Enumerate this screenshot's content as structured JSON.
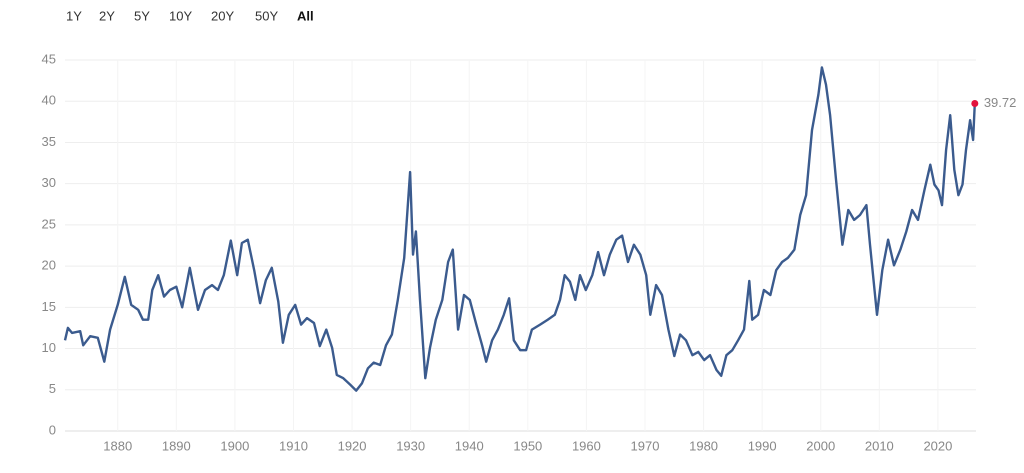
{
  "range_buttons": [
    "1Y",
    "2Y",
    "5Y",
    "10Y",
    "20Y",
    "50Y",
    "All"
  ],
  "chart_data": {
    "type": "line",
    "x": [
      1871.0,
      1871.5,
      1872.2,
      1873.6,
      1874.1,
      1875.3,
      1876.6,
      1877.7,
      1878.7,
      1880.0,
      1881.2,
      1882.3,
      1883.5,
      1884.3,
      1885.2,
      1885.9,
      1886.9,
      1887.9,
      1888.9,
      1890.0,
      1891.0,
      1892.3,
      1893.7,
      1894.9,
      1896.1,
      1897.1,
      1898.1,
      1899.3,
      1900.4,
      1901.2,
      1902.2,
      1903.3,
      1904.3,
      1905.3,
      1906.3,
      1907.4,
      1908.2,
      1909.2,
      1910.3,
      1911.3,
      1912.3,
      1913.5,
      1914.5,
      1915.6,
      1916.6,
      1917.4,
      1918.5,
      1919.7,
      1920.7,
      1921.7,
      1922.7,
      1923.7,
      1924.8,
      1925.8,
      1926.8,
      1927.8,
      1928.9,
      1929.9,
      1930.4,
      1930.9,
      1931.6,
      1932.5,
      1933.3,
      1934.3,
      1935.4,
      1936.4,
      1937.2,
      1938.1,
      1939.1,
      1940.1,
      1941.2,
      1942.2,
      1942.9,
      1943.9,
      1944.9,
      1945.9,
      1946.8,
      1947.6,
      1948.7,
      1949.7,
      1950.7,
      1952.1,
      1953.4,
      1954.6,
      1955.5,
      1956.3,
      1957.2,
      1958.1,
      1958.9,
      1959.9,
      1961.0,
      1962.0,
      1963.0,
      1964.0,
      1965.1,
      1966.1,
      1967.1,
      1968.1,
      1969.2,
      1970.2,
      1970.9,
      1971.9,
      1972.9,
      1974.0,
      1975.0,
      1976.0,
      1977.0,
      1978.1,
      1979.1,
      1980.1,
      1981.1,
      1982.2,
      1983.0,
      1983.9,
      1984.9,
      1985.9,
      1986.9,
      1987.8,
      1988.3,
      1989.3,
      1990.3,
      1991.4,
      1992.4,
      1993.4,
      1994.4,
      1995.5,
      1996.5,
      1997.5,
      1998.5,
      1999.6,
      2000.2,
      2000.9,
      2001.6,
      2002.6,
      2003.7,
      2004.7,
      2005.7,
      2006.7,
      2007.8,
      2008.4,
      2009.6,
      2010.5,
      2011.5,
      2012.5,
      2013.6,
      2014.6,
      2015.6,
      2016.6,
      2017.7,
      2018.7,
      2019.4,
      2020.1,
      2020.7,
      2021.4,
      2022.1,
      2022.8,
      2023.5,
      2024.2,
      2024.8,
      2025.5,
      2026.0,
      2026.3
    ],
    "series": [
      {
        "color": "#3b5b8e",
        "values": [
          11.0,
          12.5,
          11.9,
          12.1,
          10.4,
          11.5,
          11.3,
          8.4,
          12.3,
          15.3,
          18.7,
          15.3,
          14.7,
          13.5,
          13.5,
          17.1,
          18.9,
          16.3,
          17.1,
          17.5,
          15.0,
          19.8,
          14.7,
          17.1,
          17.7,
          17.1,
          18.9,
          23.1,
          18.9,
          22.8,
          23.2,
          19.5,
          15.5,
          18.3,
          19.8,
          15.7,
          10.7,
          14.1,
          15.3,
          12.9,
          13.7,
          13.1,
          10.3,
          12.3,
          10.1,
          6.8,
          6.4,
          5.6,
          4.9,
          5.8,
          7.6,
          8.3,
          8.0,
          10.4,
          11.7,
          15.9,
          21.0,
          31.4,
          21.4,
          24.2,
          15.9,
          6.4,
          10.1,
          13.5,
          15.9,
          20.5,
          22.0,
          12.3,
          16.5,
          15.9,
          12.9,
          10.4,
          8.4,
          11.0,
          12.3,
          14.1,
          16.1,
          11.0,
          9.8,
          9.8,
          12.3,
          12.9,
          13.5,
          14.1,
          15.9,
          18.9,
          18.1,
          15.9,
          18.9,
          17.1,
          18.9,
          21.7,
          18.9,
          21.4,
          23.2,
          23.7,
          20.5,
          22.6,
          21.4,
          18.9,
          14.1,
          17.7,
          16.5,
          12.3,
          9.1,
          11.7,
          11.0,
          9.2,
          9.6,
          8.6,
          9.2,
          7.4,
          6.7,
          9.2,
          9.8,
          11.0,
          12.3,
          18.2,
          13.5,
          14.1,
          17.1,
          16.5,
          19.5,
          20.5,
          21.0,
          22.0,
          26.2,
          28.6,
          36.5,
          40.8,
          44.1,
          42.0,
          38.3,
          30.5,
          22.6,
          26.8,
          25.6,
          26.2,
          27.4,
          22.6,
          14.1,
          19.5,
          23.2,
          20.1,
          22.0,
          24.2,
          26.8,
          25.6,
          29.2,
          32.3,
          29.9,
          29.2,
          27.4,
          34.1,
          38.3,
          31.7,
          28.6,
          29.9,
          34.1,
          37.7,
          35.3,
          39.72
        ]
      }
    ],
    "xlim": [
      1871,
      2026.5
    ],
    "ylim": [
      0,
      45
    ],
    "xticks": [
      1880,
      1890,
      1900,
      1910,
      1920,
      1930,
      1940,
      1950,
      1960,
      1970,
      1980,
      1990,
      2000,
      2010,
      2020
    ],
    "yticks": [
      0,
      5,
      10,
      15,
      20,
      25,
      30,
      35,
      40,
      45
    ],
    "grid": true,
    "last_marker_color": "#e3123d"
  }
}
